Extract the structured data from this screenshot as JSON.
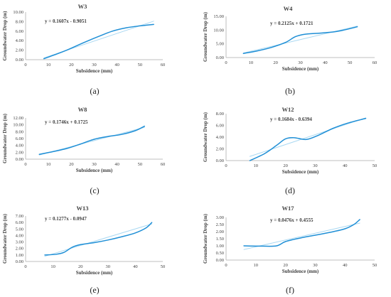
{
  "charts": [
    {
      "caption": "(a)"
    },
    {
      "caption": "(b)"
    },
    {
      "caption": "(c)"
    },
    {
      "caption": "(d)"
    },
    {
      "caption": "(e)"
    },
    {
      "caption": "(f)"
    }
  ],
  "chart_data": [
    {
      "type": "line",
      "title": "W3",
      "xlabel": "Subsidence (mm)",
      "ylabel": "Groundwater Drop (m)",
      "equation": "y = 0.1607x - 0.9051",
      "xlim": [
        0,
        60
      ],
      "ylim": [
        0,
        10
      ],
      "xticks": [
        "0",
        "10",
        "20",
        "30",
        "40",
        "50",
        "60"
      ],
      "yticks": [
        "0.00",
        "2.00",
        "4.00",
        "6.00",
        "8.00",
        "10.00"
      ],
      "grid": false,
      "series": [
        {
          "kind": "data",
          "color": "#1f8fd6",
          "x": [
            8,
            12,
            18,
            25,
            32,
            38,
            44,
            50,
            56
          ],
          "y": [
            0.2,
            0.9,
            2.0,
            3.5,
            4.9,
            6.0,
            6.7,
            7.1,
            7.4
          ]
        },
        {
          "kind": "trend",
          "color": "#a9d8f2",
          "x": [
            8,
            56
          ],
          "y": [
            0.38,
            8.09
          ]
        }
      ]
    },
    {
      "type": "line",
      "title": "W4",
      "xlabel": "Subsidence (mm)",
      "ylabel": "Groundwater Drop (m)",
      "equation": "y = 0.2125x + 0.1721",
      "xlim": [
        0,
        60
      ],
      "ylim": [
        0,
        15
      ],
      "xticks": [
        "0",
        "10",
        "20",
        "30",
        "40",
        "50",
        "60"
      ],
      "yticks": [
        "0.00",
        "5.00",
        "10.00",
        "15.00"
      ],
      "grid": false,
      "series": [
        {
          "kind": "data",
          "color": "#1f8fd6",
          "x": [
            7,
            12,
            18,
            24,
            28,
            32,
            38,
            44,
            48,
            53
          ],
          "y": [
            1.5,
            2.3,
            3.6,
            5.5,
            7.6,
            8.5,
            8.9,
            9.4,
            10.1,
            11.2
          ]
        },
        {
          "kind": "trend",
          "color": "#a9d8f2",
          "x": [
            7,
            53
          ],
          "y": [
            1.66,
            11.44
          ]
        }
      ]
    },
    {
      "type": "line",
      "title": "W8",
      "xlabel": "Subsidence (mm)",
      "ylabel": "Groundwater Drop (m)",
      "equation": "y = 0.1746x + 0.1725",
      "xlim": [
        0,
        60
      ],
      "ylim": [
        0,
        12
      ],
      "xticks": [
        "0",
        "10",
        "20",
        "30",
        "40",
        "50",
        "60"
      ],
      "yticks": [
        "0.00",
        "2.00",
        "4.00",
        "6.00",
        "8.00",
        "10.00",
        "12.00"
      ],
      "grid": false,
      "series": [
        {
          "kind": "data",
          "color": "#1f8fd6",
          "x": [
            6,
            12,
            18,
            24,
            30,
            36,
            42,
            48,
            52
          ],
          "y": [
            1.4,
            2.2,
            3.1,
            4.4,
            5.8,
            6.6,
            7.2,
            8.3,
            9.6
          ]
        },
        {
          "kind": "trend",
          "color": "#a9d8f2",
          "x": [
            6,
            52
          ],
          "y": [
            1.22,
            9.25
          ]
        }
      ]
    },
    {
      "type": "line",
      "title": "W12",
      "xlabel": "Subsidence (mm)",
      "ylabel": "Groundwater Drop (m)",
      "equation": "y = 0.1684x - 0.6394",
      "xlim": [
        0,
        50
      ],
      "ylim": [
        0,
        8
      ],
      "xticks": [
        "0",
        "10",
        "20",
        "30",
        "40",
        "50"
      ],
      "yticks": [
        "0.00",
        "2.00",
        "4.00",
        "6.00",
        "8.00"
      ],
      "grid": false,
      "series": [
        {
          "kind": "data",
          "color": "#1f8fd6",
          "x": [
            8,
            13,
            17,
            20,
            23,
            27,
            31,
            36,
            41,
            47
          ],
          "y": [
            0.0,
            1.2,
            2.6,
            3.7,
            3.9,
            3.6,
            4.3,
            5.5,
            6.4,
            7.2
          ]
        },
        {
          "kind": "trend",
          "color": "#a9d8f2",
          "x": [
            8,
            47
          ],
          "y": [
            0.71,
            7.28
          ]
        }
      ]
    },
    {
      "type": "line",
      "title": "W13",
      "xlabel": "Subsidence (mm)",
      "ylabel": "Groundwater Drop (m)",
      "equation": "y = 0.1277x - 0.0947",
      "xlim": [
        0,
        50
      ],
      "ylim": [
        0,
        7
      ],
      "xticks": [
        "0",
        "10",
        "20",
        "30",
        "40",
        "50"
      ],
      "yticks": [
        "0.00",
        "1.00",
        "2.00",
        "3.00",
        "4.00",
        "5.00",
        "6.00",
        "7.00"
      ],
      "grid": false,
      "series": [
        {
          "kind": "data",
          "color": "#1f8fd6",
          "x": [
            7,
            11,
            14,
            17,
            20,
            25,
            30,
            35,
            40,
            44,
            46
          ],
          "y": [
            1.0,
            1.1,
            1.4,
            2.2,
            2.6,
            2.9,
            3.3,
            3.8,
            4.4,
            5.2,
            6.0
          ]
        },
        {
          "kind": "trend",
          "color": "#a9d8f2",
          "x": [
            7,
            46
          ],
          "y": [
            0.8,
            5.78
          ]
        }
      ]
    },
    {
      "type": "line",
      "title": "W17",
      "xlabel": "Subsidence (mm)",
      "ylabel": "Groundwater Drop (m)",
      "equation": "y = 0.0476x + 0.4555",
      "xlim": [
        0,
        50
      ],
      "ylim": [
        0,
        3
      ],
      "xticks": [
        "0",
        "10",
        "20",
        "30",
        "40",
        "50"
      ],
      "yticks": [
        "0.00",
        "0.50",
        "1.00",
        "1.50",
        "2.00",
        "2.50",
        "3.00"
      ],
      "grid": false,
      "series": [
        {
          "kind": "data",
          "color": "#1f8fd6",
          "x": [
            6,
            12,
            17,
            20,
            25,
            30,
            35,
            40,
            43,
            45
          ],
          "y": [
            1.0,
            0.98,
            1.0,
            1.3,
            1.55,
            1.75,
            1.95,
            2.2,
            2.5,
            2.85
          ]
        },
        {
          "kind": "trend",
          "color": "#a9d8f2",
          "x": [
            6,
            45
          ],
          "y": [
            0.74,
            2.6
          ]
        }
      ]
    }
  ]
}
